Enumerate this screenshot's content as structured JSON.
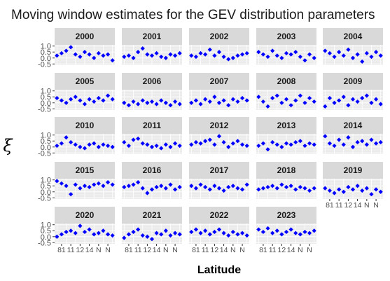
{
  "chart_data": {
    "type": "scatter",
    "title": "Moving window estimates for the GEV distribution parameters",
    "xlabel": "Latitude",
    "ylabel": "ξ",
    "x_tick_labels": [
      "81",
      "11",
      "12",
      "14",
      "N",
      "N"
    ],
    "y_ticks": [
      -0.5,
      0.0,
      0.5,
      1.0
    ],
    "y_tick_labels": [
      "-0.5",
      "0.0",
      "0.5",
      "1.0"
    ],
    "ylim": [
      -0.6,
      1.1
    ],
    "xlim": [
      0.5,
      13.5
    ],
    "grid": true,
    "point_color": "#0000ff",
    "panel_bg": "#ebebeb",
    "strip_bg": "#d9d9d9",
    "panels": [
      {
        "label": "2000",
        "x": [
          1,
          2,
          3,
          4,
          5,
          6,
          7,
          8,
          9,
          10,
          11,
          12,
          13
        ],
        "y": [
          0.2,
          0.4,
          0.6,
          0.9,
          0.3,
          0.1,
          0.5,
          0.3,
          0.0,
          0.4,
          0.2,
          0.3,
          -0.2
        ]
      },
      {
        "label": "2001",
        "x": [
          1,
          2,
          3,
          4,
          5,
          6,
          7,
          8,
          9,
          10,
          11,
          12,
          13
        ],
        "y": [
          0.1,
          0.2,
          0.0,
          0.5,
          0.8,
          0.3,
          0.2,
          0.4,
          0.1,
          0.0,
          0.3,
          0.2,
          0.4
        ]
      },
      {
        "label": "2002",
        "x": [
          1,
          2,
          3,
          4,
          5,
          6,
          7,
          8,
          9,
          10,
          11,
          12,
          13
        ],
        "y": [
          0.2,
          0.1,
          0.4,
          0.3,
          0.7,
          0.2,
          0.5,
          0.1,
          -0.1,
          0.0,
          0.2,
          0.3,
          0.4
        ]
      },
      {
        "label": "2003",
        "x": [
          1,
          2,
          3,
          4,
          5,
          6,
          7,
          8,
          9,
          10,
          11,
          12,
          13
        ],
        "y": [
          0.5,
          0.3,
          0.1,
          0.6,
          0.2,
          0.0,
          0.4,
          0.3,
          0.5,
          0.1,
          -0.2,
          0.3,
          0.0
        ]
      },
      {
        "label": "2004",
        "x": [
          1,
          2,
          3,
          4,
          5,
          6,
          7,
          8,
          9,
          10,
          11,
          12,
          13
        ],
        "y": [
          0.6,
          0.4,
          0.1,
          0.5,
          0.2,
          0.7,
          0.0,
          0.3,
          -0.3,
          0.4,
          0.1,
          0.5,
          0.2
        ]
      },
      {
        "label": "2005",
        "x": [
          1,
          2,
          3,
          4,
          5,
          6,
          7,
          8,
          9,
          10,
          11,
          12,
          13
        ],
        "y": [
          0.4,
          0.2,
          0.0,
          0.3,
          0.5,
          0.2,
          -0.1,
          0.3,
          0.1,
          0.4,
          0.2,
          0.6,
          0.3
        ]
      },
      {
        "label": "2006",
        "x": [
          1,
          2,
          3,
          4,
          5,
          6,
          7,
          8,
          9,
          10,
          11,
          12,
          13
        ],
        "y": [
          0.0,
          -0.2,
          0.1,
          -0.1,
          0.2,
          0.0,
          0.1,
          -0.1,
          0.2,
          0.0,
          -0.2,
          0.1,
          -0.1
        ]
      },
      {
        "label": "2007",
        "x": [
          1,
          2,
          3,
          4,
          5,
          6,
          7,
          8,
          9,
          10,
          11,
          12,
          13
        ],
        "y": [
          0.0,
          0.2,
          -0.1,
          0.3,
          0.1,
          0.5,
          0.0,
          0.2,
          -0.2,
          0.3,
          0.1,
          0.4,
          0.2
        ]
      },
      {
        "label": "2008",
        "x": [
          1,
          2,
          3,
          4,
          5,
          6,
          7,
          8,
          9,
          10,
          11,
          12,
          13
        ],
        "y": [
          0.5,
          0.1,
          -0.3,
          0.4,
          0.6,
          0.0,
          0.3,
          -0.2,
          0.2,
          0.6,
          0.0,
          0.4,
          0.1
        ]
      },
      {
        "label": "2009",
        "x": [
          1,
          2,
          3,
          4,
          5,
          6,
          7,
          8,
          9,
          10,
          11,
          12,
          13
        ],
        "y": [
          -0.3,
          0.4,
          0.0,
          0.2,
          0.5,
          -0.2,
          0.3,
          0.1,
          0.4,
          0.6,
          0.0,
          0.3,
          -0.1
        ]
      },
      {
        "label": "2010",
        "x": [
          1,
          2,
          3,
          4,
          5,
          6,
          7,
          8,
          9,
          10,
          11,
          12,
          13
        ],
        "y": [
          0.1,
          0.3,
          0.8,
          0.4,
          0.2,
          0.0,
          -0.1,
          0.2,
          0.3,
          0.0,
          0.2,
          0.1,
          0.0
        ]
      },
      {
        "label": "2011",
        "x": [
          1,
          2,
          3,
          4,
          5,
          6,
          7,
          8,
          9,
          10,
          11,
          12,
          13
        ],
        "y": [
          0.4,
          0.1,
          0.6,
          0.7,
          0.3,
          0.2,
          0.0,
          0.1,
          -0.1,
          0.2,
          0.0,
          0.3,
          0.1
        ]
      },
      {
        "label": "2012",
        "x": [
          1,
          2,
          3,
          4,
          5,
          6,
          7,
          8,
          9,
          10,
          11,
          12,
          13
        ],
        "y": [
          0.2,
          0.4,
          0.3,
          0.5,
          0.6,
          0.2,
          0.9,
          0.4,
          0.0,
          0.3,
          0.5,
          0.2,
          0.1
        ]
      },
      {
        "label": "2013",
        "x": [
          1,
          2,
          3,
          4,
          5,
          6,
          7,
          8,
          9,
          10,
          11,
          12,
          13
        ],
        "y": [
          0.1,
          0.3,
          -0.2,
          0.4,
          0.2,
          0.0,
          0.3,
          0.2,
          0.4,
          0.5,
          0.1,
          0.3,
          0.2
        ]
      },
      {
        "label": "2014",
        "x": [
          1,
          2,
          3,
          4,
          5,
          6,
          7,
          8,
          9,
          10,
          11,
          12,
          13
        ],
        "y": [
          0.9,
          0.3,
          0.1,
          0.6,
          0.2,
          0.8,
          0.0,
          0.4,
          0.5,
          0.2,
          0.6,
          0.3,
          0.4
        ]
      },
      {
        "label": "2015",
        "x": [
          1,
          2,
          3,
          4,
          5,
          6,
          7,
          8,
          9,
          10,
          11,
          12,
          13
        ],
        "y": [
          0.9,
          0.7,
          0.5,
          -0.2,
          0.6,
          0.3,
          0.5,
          0.4,
          0.6,
          0.7,
          0.5,
          0.8,
          0.6
        ]
      },
      {
        "label": "2016",
        "x": [
          1,
          2,
          3,
          4,
          5,
          6,
          7,
          8,
          9,
          10,
          11,
          12,
          13
        ],
        "y": [
          0.4,
          0.5,
          0.6,
          0.8,
          0.3,
          -0.1,
          0.2,
          0.4,
          0.5,
          0.3,
          0.6,
          0.2,
          0.4
        ]
      },
      {
        "label": "2017",
        "x": [
          1,
          2,
          3,
          4,
          5,
          6,
          7,
          8,
          9,
          10,
          11,
          12,
          13
        ],
        "y": [
          0.5,
          0.3,
          0.6,
          0.4,
          0.2,
          0.5,
          0.3,
          0.1,
          0.4,
          0.5,
          0.3,
          0.2,
          0.6
        ]
      },
      {
        "label": "2018",
        "x": [
          1,
          2,
          3,
          4,
          5,
          6,
          7,
          8,
          9,
          10,
          11,
          12,
          13
        ],
        "y": [
          0.2,
          0.3,
          0.4,
          0.5,
          0.3,
          0.6,
          0.4,
          0.5,
          0.2,
          0.4,
          0.3,
          0.1,
          0.3
        ]
      },
      {
        "label": "2019",
        "x": [
          1,
          2,
          3,
          4,
          5,
          6,
          7,
          8,
          9,
          10,
          11,
          12,
          13
        ],
        "y": [
          0.3,
          0.1,
          -0.1,
          0.2,
          0.0,
          0.4,
          0.2,
          0.5,
          0.1,
          0.3,
          -0.2,
          0.2,
          0.0
        ]
      },
      {
        "label": "2020",
        "x": [
          1,
          2,
          3,
          4,
          5,
          6,
          7,
          8,
          9,
          10,
          11,
          12,
          13
        ],
        "y": [
          0.0,
          0.2,
          0.4,
          0.5,
          0.3,
          0.9,
          0.4,
          0.6,
          0.2,
          0.3,
          0.5,
          0.2,
          0.1
        ]
      },
      {
        "label": "2021",
        "x": [
          1,
          2,
          3,
          4,
          5,
          6,
          7,
          8,
          9,
          10,
          11,
          12,
          13
        ],
        "y": [
          -0.1,
          0.2,
          0.4,
          0.6,
          0.1,
          0.0,
          -0.2,
          0.3,
          0.2,
          0.5,
          0.1,
          0.3,
          0.2
        ]
      },
      {
        "label": "2022",
        "x": [
          1,
          2,
          3,
          4,
          5,
          6,
          7,
          8,
          9,
          10,
          11,
          12,
          13
        ],
        "y": [
          0.4,
          0.6,
          0.3,
          0.5,
          0.2,
          0.4,
          0.6,
          0.3,
          0.1,
          0.4,
          0.2,
          0.3,
          0.1
        ]
      },
      {
        "label": "2023",
        "x": [
          1,
          2,
          3,
          4,
          5,
          6,
          7,
          8,
          9,
          10,
          11,
          12,
          13
        ],
        "y": [
          0.6,
          0.4,
          0.7,
          0.3,
          0.5,
          0.2,
          0.4,
          0.6,
          0.3,
          0.2,
          0.4,
          0.3,
          0.5
        ]
      }
    ]
  }
}
